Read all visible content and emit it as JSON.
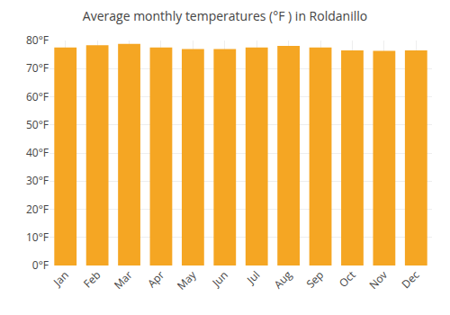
{
  "chart_data": {
    "type": "bar",
    "title": "Average monthly temperatures (°F ) in Roldanillo",
    "categories": [
      "Jan",
      "Feb",
      "Mar",
      "Apr",
      "May",
      "Jun",
      "Jul",
      "Aug",
      "Sep",
      "Oct",
      "Nov",
      "Dec"
    ],
    "values": [
      77.5,
      78.3,
      78.8,
      77.5,
      77.0,
      77.0,
      77.5,
      78.1,
      77.5,
      76.5,
      76.3,
      76.5
    ],
    "color": "#F5A623",
    "ylim": [
      0,
      80
    ],
    "yticks": [
      {
        "value": 0,
        "label": "0°F"
      },
      {
        "value": 10,
        "label": "10°F"
      },
      {
        "value": 20,
        "label": "20°F"
      },
      {
        "value": 30,
        "label": "30°F"
      },
      {
        "value": 40,
        "label": "40°F"
      },
      {
        "value": 50,
        "label": "50°F"
      },
      {
        "value": 60,
        "label": "60°F"
      },
      {
        "value": 70,
        "label": "70°F"
      },
      {
        "value": 80,
        "label": "80°F"
      }
    ],
    "grid": true
  }
}
